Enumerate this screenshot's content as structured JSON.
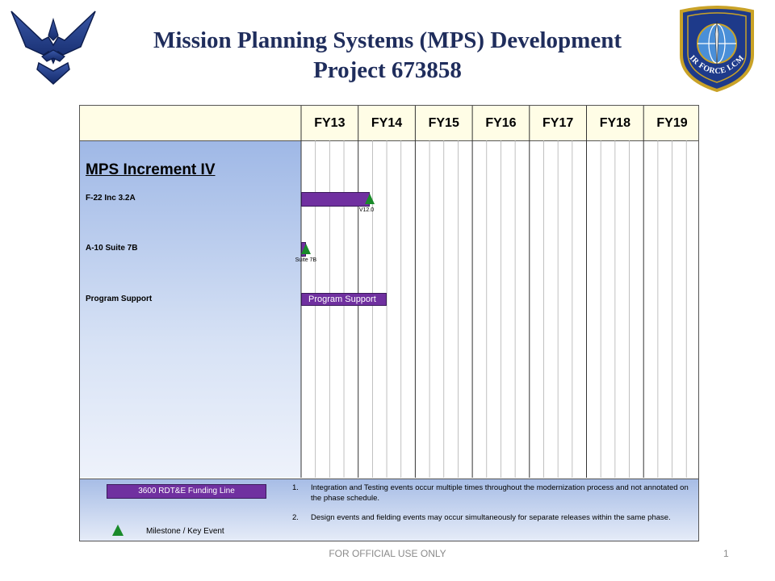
{
  "slide": {
    "title_line1": "Mission Planning Systems (MPS) Development",
    "title_line2": "Project 673858",
    "footer": "FOR OFFICIAL USE ONLY",
    "page_number": "1"
  },
  "logos": {
    "left": "air-force-wings-icon",
    "right_text": "AIR FORCE LCMC"
  },
  "schedule": {
    "fiscal_years": [
      "FY13",
      "FY14",
      "FY15",
      "FY16",
      "FY17",
      "FY18",
      "FY19"
    ],
    "section_title": "MPS Increment IV",
    "rows": [
      {
        "label": "F-22 Inc 3.2A",
        "bar_start_fy": 0.0,
        "bar_end_fy": 1.2,
        "bar_text": "",
        "milestone_fy": 1.2,
        "milestone_label": "V12.0"
      },
      {
        "label": "A-10 Suite 7B",
        "bar_start_fy": 0.0,
        "bar_end_fy": 0.08,
        "bar_text": "",
        "milestone_fy": 0.08,
        "milestone_label": "Suite 7B"
      },
      {
        "label": "Program Support",
        "bar_start_fy": 0.0,
        "bar_end_fy": 1.5,
        "bar_text": "Program Support",
        "milestone_fy": null,
        "milestone_label": ""
      }
    ]
  },
  "legend": {
    "funding_label": "3600 RDT&E Funding Line",
    "milestone_label": "Milestone / Key Event",
    "colors": {
      "funding_bar": "#7030a0",
      "milestone": "#1a8a2a"
    }
  },
  "notes": [
    {
      "num": "1.",
      "text": "Integration and Testing events occur multiple times throughout the modernization process and not annotated on the phase schedule."
    },
    {
      "num": "2.",
      "text": "Design events and fielding events may occur simultaneously for separate releases within the same phase."
    }
  ]
}
